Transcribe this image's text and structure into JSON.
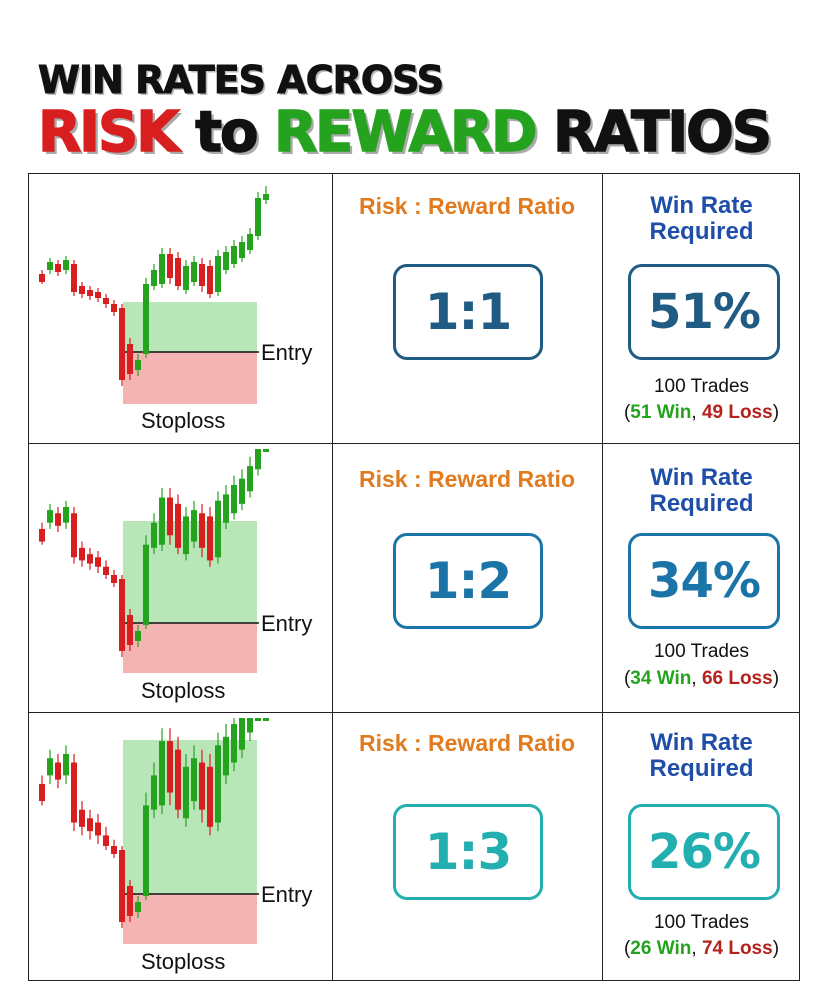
{
  "title": {
    "line1": "WIN RATES ACROSS",
    "risk": "RISK",
    "to": "to",
    "reward": "REWARD",
    "ratios": "RATIOS"
  },
  "colors": {
    "risk_red": "#d81e1e",
    "reward_green": "#25a31f",
    "ratio_header": "#e07b1f",
    "win_rate_header": "#1f4ea8",
    "row1_accent": "#1f5b82",
    "row2_accent": "#1a74a8",
    "row3_accent": "#23aeb0",
    "profit_zone": "#b9e6b9",
    "loss_zone": "#f4b4b4"
  },
  "rows": [
    {
      "chart": {
        "entry_label": "Entry",
        "stoploss_label": "Stoploss",
        "reward_multiple": 1
      },
      "ratio_header": "Risk : Reward Ratio",
      "ratio": "1:1",
      "win_header_line1": "Win Rate",
      "win_header_line2": "Required",
      "win_rate": "51%",
      "trades": "100 Trades",
      "open_paren": "(",
      "wins": "51 Win",
      "sep": ", ",
      "losses": "49 Loss",
      "close_paren": ")"
    },
    {
      "chart": {
        "entry_label": "Entry",
        "stoploss_label": "Stoploss",
        "reward_multiple": 2
      },
      "ratio_header": "Risk : Reward Ratio",
      "ratio": "1:2",
      "win_header_line1": "Win Rate",
      "win_header_line2": "Required",
      "win_rate": "34%",
      "trades": "100 Trades",
      "open_paren": "(",
      "wins": "34 Win",
      "sep": ", ",
      "losses": "66 Loss",
      "close_paren": ")"
    },
    {
      "chart": {
        "entry_label": "Entry",
        "stoploss_label": "Stoploss",
        "reward_multiple": 3
      },
      "ratio_header": "Risk : Reward Ratio",
      "ratio": "1:3",
      "win_header_line1": "Win Rate",
      "win_header_line2": "Required",
      "win_rate": "26%",
      "trades": "100 Trades",
      "open_paren": "(",
      "wins": "26 Win",
      "sep": ", ",
      "losses": "74 Loss",
      "close_paren": ")"
    }
  ]
}
